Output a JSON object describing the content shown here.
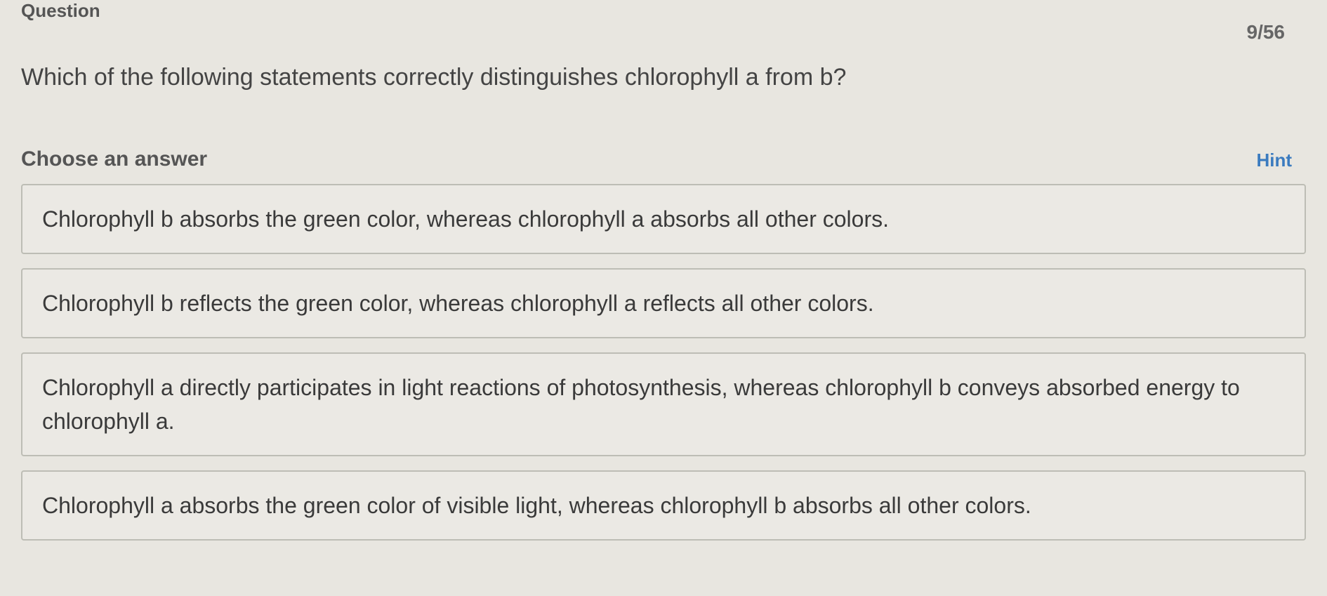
{
  "header": {
    "question_label": "Question",
    "progress": "9/56"
  },
  "question": {
    "text": "Which of the following statements correctly distinguishes chlorophyll a from b?"
  },
  "choose": {
    "label": "Choose an answer",
    "hint": "Hint"
  },
  "answers": {
    "items": [
      {
        "text": "Chlorophyll b absorbs the green color, whereas chlorophyll a absorbs all other colors."
      },
      {
        "text": "Chlorophyll b reflects the green color, whereas chlorophyll a reflects all other colors."
      },
      {
        "text": "Chlorophyll a directly participates in light reactions of photosynthesis, whereas chlorophyll b conveys absorbed energy to chlorophyll a."
      },
      {
        "text": "Chlorophyll a absorbs the green color of visible light, whereas chlorophyll b absorbs all other colors."
      }
    ]
  },
  "colors": {
    "background": "#e8e6e0",
    "text": "#3a3a3a",
    "border": "#bdbdb5",
    "link": "#3b7bbf"
  }
}
